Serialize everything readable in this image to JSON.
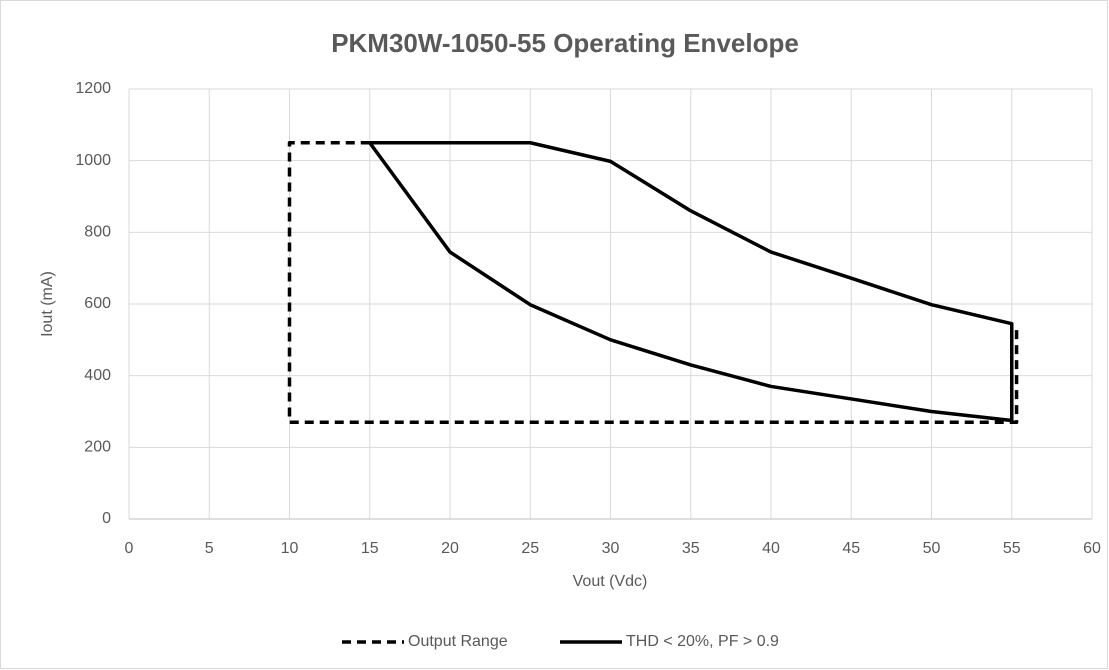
{
  "chart_data": {
    "type": "line",
    "title": "PKM30W-1050-55 Operating Envelope",
    "x_label": "Vout (Vdc)",
    "y_label": "Iout (mA)",
    "xlim": [
      0,
      60
    ],
    "xticks": [
      0,
      5,
      10,
      15,
      20,
      25,
      30,
      35,
      40,
      45,
      50,
      55,
      60
    ],
    "ylim": [
      0,
      1200
    ],
    "yticks": [
      0,
      200,
      400,
      600,
      800,
      1000,
      1200
    ],
    "grid": true,
    "legend": "bottom",
    "series": [
      {
        "name": "Output Range",
        "color": "#000000",
        "style": "dashed",
        "x": [
          15,
          10,
          10,
          55.3,
          55.3
        ],
        "values": [
          1050,
          1050,
          270,
          270,
          540
        ]
      },
      {
        "name": "THD < 20%, PF > 0.9",
        "color": "#000000",
        "style": "solid",
        "x": [
          15,
          20,
          25,
          30,
          35,
          40,
          45,
          50,
          55,
          55,
          50,
          45,
          40,
          35,
          30,
          25,
          15
        ],
        "values": [
          1050,
          745,
          598,
          500,
          430,
          370,
          335,
          300,
          275,
          545,
          598,
          672,
          745,
          860,
          998,
          1050,
          1050
        ]
      }
    ]
  }
}
